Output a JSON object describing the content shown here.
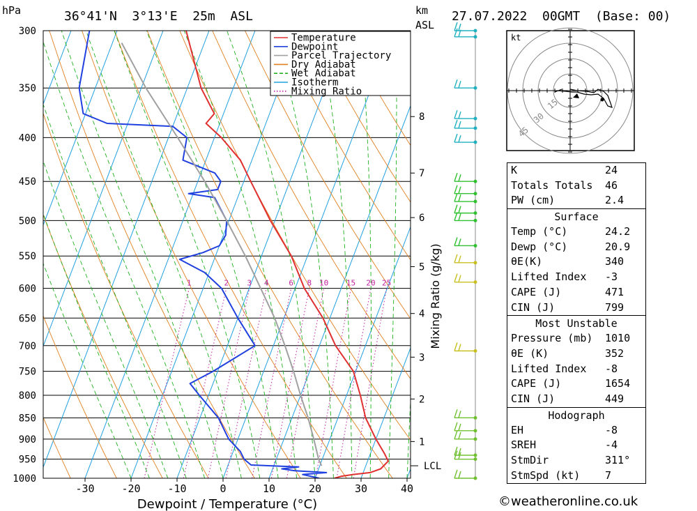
{
  "header": {
    "pressure_unit": "hPa",
    "location": "36°41'N  3°13'E  25m  ASL",
    "km_label": "km",
    "asl_label": "ASL",
    "datetime": "27.07.2022  00GMT  (Base: 00)"
  },
  "chart_data": {
    "type": "line",
    "xlabel": "Dewpoint / Temperature (°C)",
    "ylabel": "hPa",
    "right_axis_label": "Mixing Ratio (g/kg)",
    "x_ticks": [
      -30,
      -20,
      -10,
      0,
      10,
      20,
      30,
      40
    ],
    "xlim": [
      -40,
      40
    ],
    "pressure_levels": [
      300,
      350,
      400,
      450,
      500,
      550,
      600,
      650,
      700,
      750,
      800,
      850,
      900,
      950,
      1000
    ],
    "ylim": [
      300,
      1000
    ],
    "mixing_ratio_labels": [
      "1",
      "2",
      "3",
      "4",
      "6",
      "8",
      "10",
      "15",
      "20",
      "25"
    ],
    "km_ticks": [
      {
        "label": "1",
        "p": 906
      },
      {
        "label": "2",
        "p": 808
      },
      {
        "label": "3",
        "p": 722
      },
      {
        "label": "4",
        "p": 642
      },
      {
        "label": "5",
        "p": 566
      },
      {
        "label": "6",
        "p": 496
      },
      {
        "label": "7",
        "p": 440
      },
      {
        "label": "8",
        "p": 378
      }
    ],
    "lcl": {
      "label": "LCL",
      "p": 967
    },
    "legend": {
      "placement": "top-right",
      "items": [
        {
          "name": "Temperature",
          "color": "#e03030",
          "style": "solid"
        },
        {
          "name": "Dewpoint",
          "color": "#2040e0",
          "style": "solid"
        },
        {
          "name": "Parcel Trajectory",
          "color": "#a0a0a0",
          "style": "solid"
        },
        {
          "name": "Dry Adiabat",
          "color": "#e08020",
          "style": "solid"
        },
        {
          "name": "Wet Adiabat",
          "color": "#20b020",
          "style": "dashed"
        },
        {
          "name": "Isotherm",
          "color": "#20a0e0",
          "style": "solid"
        },
        {
          "name": "Mixing Ratio",
          "color": "#c020a0",
          "style": "dotted"
        }
      ]
    },
    "series": [
      {
        "name": "Temperature",
        "color": "#e03030",
        "points": [
          [
            1000,
            24.2
          ],
          [
            995,
            25.5
          ],
          [
            990,
            28.0
          ],
          [
            985,
            31.5
          ],
          [
            975,
            33.5
          ],
          [
            955,
            34.5
          ],
          [
            935,
            33.0
          ],
          [
            900,
            30.0
          ],
          [
            850,
            26.0
          ],
          [
            800,
            23.0
          ],
          [
            750,
            19.5
          ],
          [
            700,
            13.5
          ],
          [
            650,
            8.5
          ],
          [
            600,
            2.0
          ],
          [
            550,
            -3.5
          ],
          [
            500,
            -11.0
          ],
          [
            450,
            -18.5
          ],
          [
            425,
            -22.5
          ],
          [
            400,
            -28.5
          ],
          [
            385,
            -33.0
          ],
          [
            375,
            -32.0
          ],
          [
            350,
            -37.0
          ],
          [
            300,
            -45.0
          ]
        ]
      },
      {
        "name": "Dewpoint",
        "color": "#2040e0",
        "points": [
          [
            1000,
            20.9
          ],
          [
            990,
            17.0
          ],
          [
            985,
            22.0
          ],
          [
            980,
            15.0
          ],
          [
            975,
            12.0
          ],
          [
            970,
            15.5
          ],
          [
            965,
            5.0
          ],
          [
            950,
            3.0
          ],
          [
            930,
            1.5
          ],
          [
            900,
            -2.0
          ],
          [
            850,
            -6.0
          ],
          [
            800,
            -12.0
          ],
          [
            775,
            -15.0
          ],
          [
            750,
            -11.0
          ],
          [
            700,
            -4.0
          ],
          [
            650,
            -10.0
          ],
          [
            600,
            -16.0
          ],
          [
            575,
            -21.0
          ],
          [
            555,
            -27.5
          ],
          [
            545,
            -23.0
          ],
          [
            535,
            -20.0
          ],
          [
            520,
            -19.5
          ],
          [
            500,
            -20.5
          ],
          [
            470,
            -25.0
          ],
          [
            465,
            -31.0
          ],
          [
            460,
            -25.0
          ],
          [
            450,
            -25.0
          ],
          [
            440,
            -27.0
          ],
          [
            425,
            -35.0
          ],
          [
            400,
            -36.0
          ],
          [
            388,
            -40.0
          ],
          [
            385,
            -54.5
          ],
          [
            375,
            -60.5
          ],
          [
            350,
            -63.5
          ],
          [
            300,
            -66.0
          ]
        ]
      },
      {
        "name": "Parcel Trajectory",
        "color": "#a0a0a0",
        "points": [
          [
            967,
            20.4
          ],
          [
            950,
            19.2
          ],
          [
            900,
            16.5
          ],
          [
            850,
            13.5
          ],
          [
            800,
            10.0
          ],
          [
            750,
            6.5
          ],
          [
            700,
            2.5
          ],
          [
            650,
            -2.0
          ],
          [
            600,
            -7.5
          ],
          [
            550,
            -13.5
          ],
          [
            500,
            -20.5
          ],
          [
            450,
            -28.5
          ],
          [
            400,
            -38.0
          ],
          [
            350,
            -49.0
          ],
          [
            310,
            -58.0
          ]
        ]
      }
    ]
  },
  "hodograph": {
    "unit_label": "kt",
    "ring_labels": [
      "15",
      "30",
      "45"
    ]
  },
  "wind_barb_levels": [
    300,
    305,
    350,
    380,
    390,
    405,
    450,
    465,
    475,
    490,
    500,
    535,
    560,
    590,
    710,
    850,
    880,
    900,
    940,
    950,
    1000
  ],
  "indices": {
    "general": [
      {
        "label": "K",
        "value": "24"
      },
      {
        "label": "Totals Totals",
        "value": "46"
      },
      {
        "label": "PW (cm)",
        "value": "2.4"
      }
    ],
    "surface_title": "Surface",
    "surface": [
      {
        "label": "Temp (°C)",
        "value": "24.2"
      },
      {
        "label": "Dewp (°C)",
        "value": "20.9"
      },
      {
        "label": "θE(K)",
        "value": "340"
      },
      {
        "label": "Lifted Index",
        "value": "-3"
      },
      {
        "label": "CAPE (J)",
        "value": "471"
      },
      {
        "label": "CIN (J)",
        "value": "799"
      }
    ],
    "mu_title": "Most Unstable",
    "mu": [
      {
        "label": "Pressure (mb)",
        "value": "1010"
      },
      {
        "label": "θE (K)",
        "value": "352"
      },
      {
        "label": "Lifted Index",
        "value": "-8"
      },
      {
        "label": "CAPE (J)",
        "value": "1654"
      },
      {
        "label": "CIN (J)",
        "value": "449"
      }
    ],
    "hodo_title": "Hodograph",
    "hodo": [
      {
        "label": "EH",
        "value": "-8"
      },
      {
        "label": "SREH",
        "value": "-4"
      },
      {
        "label": "StmDir",
        "value": "311°"
      },
      {
        "label": "StmSpd (kt)",
        "value": "7"
      }
    ]
  },
  "footer": "©weatheronline.co.uk"
}
